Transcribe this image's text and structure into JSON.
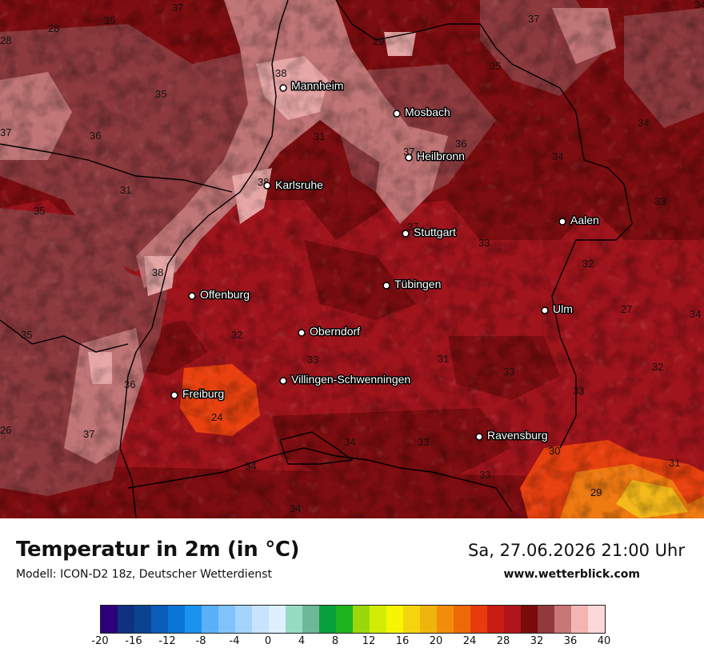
{
  "header": {
    "title": "Temperatur in 2m (in °C)",
    "model": "Modell: ICON-D2 18z, Deutscher Wetterdienst",
    "datetime": "Sa, 27.06.2026 21:00 Uhr",
    "website": "www.wetterblick.com"
  },
  "colors": {
    "base": "#a0141c",
    "dark": "#7d0d10",
    "warm": "#8c3a3e",
    "pink": "#c07576",
    "lightpink": "#e6a6a6",
    "orange": "#e8410f",
    "brightorange": "#f07a12",
    "yellow": "#f5b91a",
    "border": "#000000"
  },
  "cities": [
    {
      "name": "Mannheim"
    },
    {
      "name": "Mosbach"
    },
    {
      "name": "Heilbronn"
    },
    {
      "name": "Karlsruhe"
    },
    {
      "name": "Stuttgart"
    },
    {
      "name": "Aalen"
    },
    {
      "name": "Tübingen"
    },
    {
      "name": "Offenburg"
    },
    {
      "name": "Ulm"
    },
    {
      "name": "Oberndorf"
    },
    {
      "name": "Villingen-Schwenningen"
    },
    {
      "name": "Freiburg"
    },
    {
      "name": "Ravensburg"
    }
  ],
  "temperatures": [
    "35",
    "37",
    "28",
    "28",
    "37",
    "29",
    "34",
    "37",
    "35",
    "38",
    "35",
    "31",
    "36",
    "37",
    "36",
    "34",
    "31",
    "38",
    "34",
    "35",
    "33",
    "37",
    "33",
    "32",
    "38",
    "27",
    "34",
    "35",
    "32",
    "33",
    "31",
    "33",
    "32",
    "36",
    "33",
    "24",
    "37",
    "26",
    "34",
    "34",
    "33",
    "30",
    "31",
    "33",
    "29",
    "34"
  ],
  "legend": {
    "colors": [
      "#2d007a",
      "#103080",
      "#0a4490",
      "#0a5cb8",
      "#0a76d6",
      "#1a92f0",
      "#5ab0f8",
      "#82c2fa",
      "#a4d4fc",
      "#c6e4fd",
      "#deeffe",
      "#96dcc2",
      "#6cb898",
      "#08a03c",
      "#1eb41e",
      "#9ad80c",
      "#d2ec04",
      "#f6f604",
      "#f4d40c",
      "#f0b40c",
      "#f28c0c",
      "#ee6808",
      "#e63c0c",
      "#c81c12",
      "#b0141a",
      "#7a0a0c",
      "#93393d",
      "#c87676",
      "#f4b4b4",
      "#fdd8d8"
    ],
    "labels": [
      "-20",
      "-16",
      "-12",
      "-8",
      "-4",
      "0",
      "4",
      "8",
      "12",
      "16",
      "20",
      "24",
      "28",
      "32",
      "36",
      "40"
    ]
  }
}
